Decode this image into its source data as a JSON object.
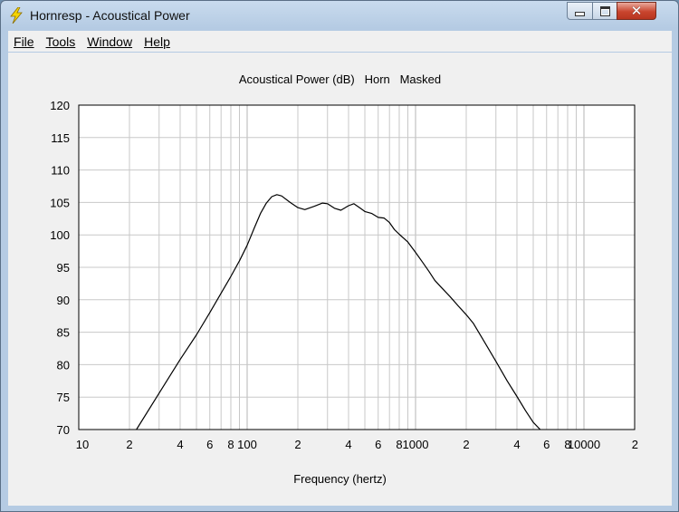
{
  "window": {
    "title": "Hornresp - Acoustical Power",
    "icon": "lightning-bolt-icon",
    "controls": {
      "minimize": "minimize-icon",
      "maximize": "maximize-icon",
      "close": "close-icon"
    }
  },
  "menu": {
    "items": [
      "File",
      "Tools",
      "Window",
      "Help"
    ]
  },
  "colors": {
    "plot_background": "#ffffff",
    "grid": "#c8c8c8",
    "curve": "#000000",
    "window_background": "#f0f0f0"
  },
  "chart_data": {
    "type": "line",
    "title": "Acoustical Power (dB)   Horn   Masked",
    "xlabel": "Frequency (hertz)",
    "ylabel": "",
    "x_scale": "log",
    "xlim": [
      10,
      20000
    ],
    "ylim": [
      70,
      120
    ],
    "grid": true,
    "y_ticks": [
      120,
      115,
      110,
      105,
      100,
      95,
      90,
      85,
      80,
      75,
      70
    ],
    "x_tick_labels": [
      {
        "value": 10,
        "label": "10"
      },
      {
        "value": 20,
        "label": "2"
      },
      {
        "value": 40,
        "label": "4"
      },
      {
        "value": 60,
        "label": "6"
      },
      {
        "value": 80,
        "label": "8"
      },
      {
        "value": 100,
        "label": "100"
      },
      {
        "value": 200,
        "label": "2"
      },
      {
        "value": 400,
        "label": "4"
      },
      {
        "value": 600,
        "label": "6"
      },
      {
        "value": 800,
        "label": "8"
      },
      {
        "value": 1000,
        "label": "1000"
      },
      {
        "value": 2000,
        "label": "2"
      },
      {
        "value": 4000,
        "label": "4"
      },
      {
        "value": 6000,
        "label": "6"
      },
      {
        "value": 8000,
        "label": "8"
      },
      {
        "value": 10000,
        "label": "10000"
      },
      {
        "value": 20000,
        "label": "2"
      }
    ],
    "series": [
      {
        "x": [
          22,
          30,
          40,
          50,
          60,
          70,
          80,
          90,
          100,
          110,
          120,
          130,
          140,
          150,
          160,
          180,
          200,
          220,
          250,
          280,
          300,
          330,
          360,
          400,
          430,
          470,
          500,
          550,
          600,
          650,
          700,
          750,
          800,
          900,
          1000,
          1100,
          1200,
          1300,
          1400,
          1600,
          1800,
          2000,
          2200,
          2500,
          3000,
          3500,
          4000,
          4500,
          5000,
          5500
        ],
        "y": [
          70.0,
          75.6,
          80.8,
          84.6,
          88.0,
          91.0,
          93.6,
          96.0,
          98.4,
          101.0,
          103.3,
          104.9,
          105.9,
          106.2,
          106.0,
          105.0,
          104.2,
          103.9,
          104.4,
          104.9,
          104.8,
          104.1,
          103.8,
          104.5,
          104.8,
          104.1,
          103.6,
          103.3,
          102.7,
          102.6,
          101.9,
          100.8,
          100.1,
          98.9,
          97.3,
          95.8,
          94.4,
          93.0,
          92.1,
          90.5,
          89.0,
          87.7,
          86.4,
          84.0,
          80.5,
          77.5,
          75.1,
          72.9,
          71.1,
          70.0
        ]
      }
    ]
  }
}
